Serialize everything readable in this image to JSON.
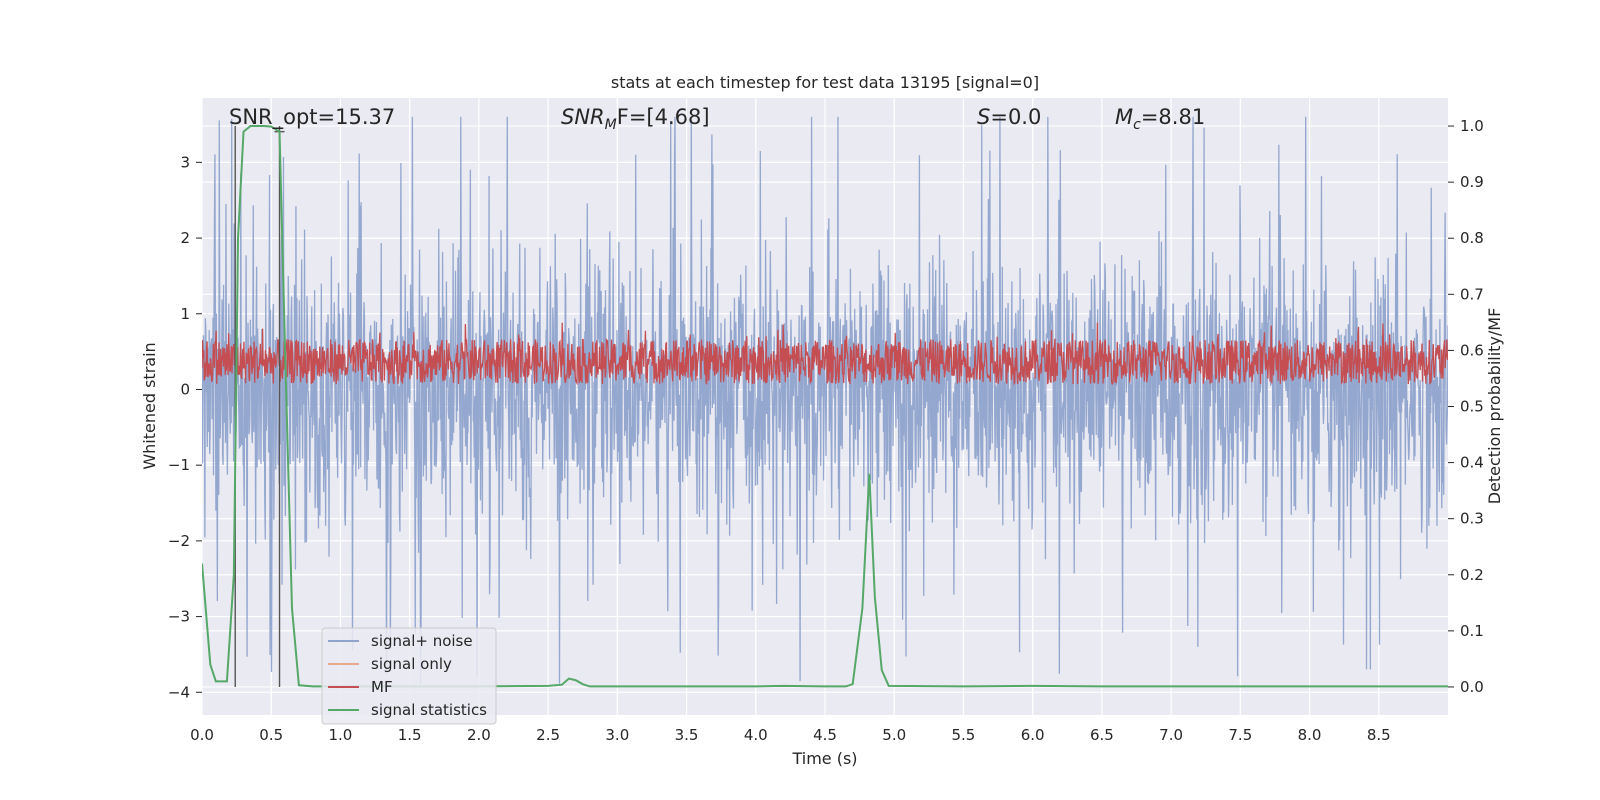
{
  "chart_data": {
    "type": "line",
    "title": "stats at each timestep for test data 13195 [signal=0]",
    "xlabel": "Time (s)",
    "ylabel_left": "Whitened strain",
    "ylabel_right": "Detection probability/MF",
    "xlim": [
      0.0,
      9.0
    ],
    "ylim_left": [
      -4.3,
      3.85
    ],
    "ylim_right": [
      -0.05,
      1.05
    ],
    "x_ticks": [
      "0.0",
      "0.5",
      "1.0",
      "1.5",
      "2.0",
      "2.5",
      "3.0",
      "3.5",
      "4.0",
      "4.5",
      "5.0",
      "5.5",
      "6.0",
      "6.5",
      "7.0",
      "7.5",
      "8.0",
      "8.5"
    ],
    "y_ticks_left": [
      "3",
      "2",
      "1",
      "0",
      "−1",
      "−2",
      "−3",
      "−4"
    ],
    "y_ticks_right": [
      "1.0",
      "0.9",
      "0.8",
      "0.7",
      "0.6",
      "0.5",
      "0.4",
      "0.3",
      "0.2",
      "0.1",
      "0.0"
    ],
    "grid": true,
    "legend_position": "lower-left",
    "annotations": {
      "snr_opt": "SNR_opt=15.37",
      "snr_mf_label": "SNR",
      "snr_mf_sub": "M",
      "snr_mf_rest": "F=[4.68]",
      "s_label": "S",
      "s_value": "=0.0",
      "mc_label": "M",
      "mc_sub": "c",
      "mc_value": "=8.81"
    },
    "vertical_markers_x": [
      0.24,
      0.56
    ],
    "series": [
      {
        "name": "signal+ noise",
        "color": "#8fa3cc",
        "axis": "left",
        "description_values": {
          "typical_amplitude": 1.5,
          "peak_amplitude": 3.5
        }
      },
      {
        "name": "signal only",
        "color": "#e8a98e",
        "axis": "left"
      },
      {
        "name": "MF",
        "color": "#c44e52",
        "axis": "right",
        "baseline": 0.54,
        "band": [
          0.54,
          0.62
        ]
      },
      {
        "name": "signal statistics",
        "color": "#55a868",
        "axis": "right",
        "x": [
          0.0,
          0.06,
          0.1,
          0.18,
          0.23,
          0.26,
          0.3,
          0.35,
          0.4,
          0.45,
          0.5,
          0.56,
          0.6,
          0.65,
          0.7,
          0.8,
          1.0,
          1.5,
          2.0,
          2.5,
          2.6,
          2.65,
          2.7,
          2.75,
          2.8,
          3.0,
          3.5,
          4.0,
          4.2,
          4.5,
          4.65,
          4.7,
          4.77,
          4.82,
          4.86,
          4.91,
          4.96,
          5.5,
          6.0,
          6.5,
          7.0,
          7.5,
          8.0,
          8.5,
          9.0
        ],
        "y": [
          0.22,
          0.04,
          0.01,
          0.01,
          0.2,
          0.8,
          0.99,
          1.0,
          1.0,
          1.0,
          0.999,
          0.99,
          0.6,
          0.14,
          0.003,
          0.001,
          0.001,
          0.001,
          0.001,
          0.002,
          0.004,
          0.015,
          0.012,
          0.005,
          0.001,
          0.001,
          0.001,
          0.001,
          0.002,
          0.001,
          0.001,
          0.005,
          0.14,
          0.38,
          0.16,
          0.03,
          0.002,
          0.001,
          0.002,
          0.001,
          0.001,
          0.001,
          0.001,
          0.001,
          0.001
        ]
      }
    ]
  }
}
